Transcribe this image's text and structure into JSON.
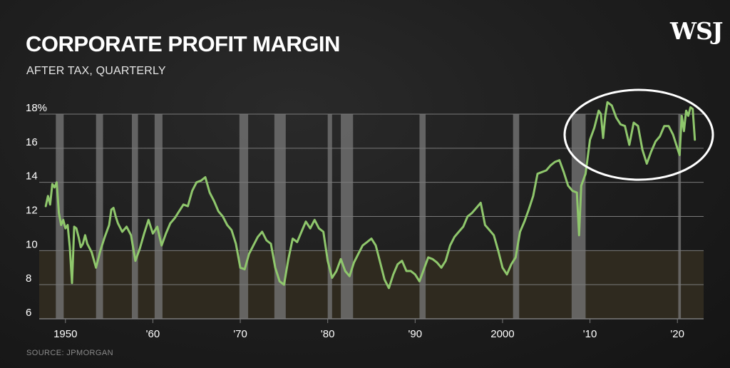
{
  "logo": "WSJ",
  "source": "SOURCE: JPMORGAN",
  "colors": {
    "line": "#8fc76c",
    "recession": "#6e6e6e",
    "below10": "#2f2a1f",
    "grid": "#7a7a7a",
    "circle": "#ffffff"
  },
  "chart_data": {
    "type": "line",
    "title": "CORPORATE PROFIT MARGIN",
    "subtitle": "AFTER TAX, QUARTERLY",
    "ylim": [
      6,
      18
    ],
    "yticks": [
      {
        "value": 18,
        "label": "18%"
      },
      {
        "value": 16,
        "label": "16"
      },
      {
        "value": 14,
        "label": "14"
      },
      {
        "value": 12,
        "label": "12"
      },
      {
        "value": 10,
        "label": "10"
      },
      {
        "value": 8,
        "label": "8"
      },
      {
        "value": 6,
        "label": "6"
      }
    ],
    "xlim": [
      1947,
      2023
    ],
    "xticks": [
      {
        "value": 1950,
        "label": "1950"
      },
      {
        "value": 1960,
        "label": "'60"
      },
      {
        "value": 1970,
        "label": "'70"
      },
      {
        "value": 1980,
        "label": "'80"
      },
      {
        "value": 1990,
        "label": "'90"
      },
      {
        "value": 2000,
        "label": "2000"
      },
      {
        "value": 2010,
        "label": "'10"
      },
      {
        "value": 2020,
        "label": "'20"
      }
    ],
    "recessions": [
      [
        1948.9,
        1949.8
      ],
      [
        1953.5,
        1954.3
      ],
      [
        1957.6,
        1958.3
      ],
      [
        1960.2,
        1961.1
      ],
      [
        1969.9,
        1970.9
      ],
      [
        1973.9,
        1975.2
      ],
      [
        1980.0,
        1980.5
      ],
      [
        1981.5,
        1982.9
      ],
      [
        1990.5,
        1991.2
      ],
      [
        2001.2,
        2001.9
      ],
      [
        2007.9,
        2009.5
      ],
      [
        2020.1,
        2020.4
      ]
    ],
    "series": [
      {
        "values": [
          [
            1947.75,
            12.6
          ],
          [
            1948.0,
            13.2
          ],
          [
            1948.25,
            12.7
          ],
          [
            1948.5,
            13.9
          ],
          [
            1948.75,
            13.7
          ],
          [
            1949.0,
            14.0
          ],
          [
            1949.25,
            12.2
          ],
          [
            1949.5,
            11.5
          ],
          [
            1949.75,
            11.8
          ],
          [
            1950.0,
            11.3
          ],
          [
            1950.25,
            11.5
          ],
          [
            1950.5,
            10.2
          ],
          [
            1950.75,
            8.1
          ],
          [
            1951.0,
            11.4
          ],
          [
            1951.25,
            11.3
          ],
          [
            1951.5,
            10.8
          ],
          [
            1951.75,
            10.2
          ],
          [
            1952.0,
            10.4
          ],
          [
            1952.25,
            10.9
          ],
          [
            1952.5,
            10.4
          ],
          [
            1953.0,
            9.9
          ],
          [
            1953.5,
            9.0
          ],
          [
            1954.0,
            10.0
          ],
          [
            1954.5,
            10.8
          ],
          [
            1955.0,
            11.5
          ],
          [
            1955.25,
            12.4
          ],
          [
            1955.5,
            12.5
          ],
          [
            1955.75,
            12.0
          ],
          [
            1956.0,
            11.6
          ],
          [
            1956.5,
            11.1
          ],
          [
            1957.0,
            11.4
          ],
          [
            1957.5,
            10.9
          ],
          [
            1958.0,
            9.4
          ],
          [
            1958.5,
            10.1
          ],
          [
            1959.0,
            11.0
          ],
          [
            1959.5,
            11.8
          ],
          [
            1960.0,
            11.0
          ],
          [
            1960.5,
            11.4
          ],
          [
            1961.0,
            10.3
          ],
          [
            1961.5,
            11.0
          ],
          [
            1962.0,
            11.6
          ],
          [
            1962.5,
            11.9
          ],
          [
            1963.0,
            12.3
          ],
          [
            1963.5,
            12.7
          ],
          [
            1964.0,
            12.6
          ],
          [
            1964.5,
            13.5
          ],
          [
            1965.0,
            14.0
          ],
          [
            1965.5,
            14.1
          ],
          [
            1966.0,
            14.3
          ],
          [
            1966.5,
            13.4
          ],
          [
            1967.0,
            12.9
          ],
          [
            1967.5,
            12.3
          ],
          [
            1968.0,
            12.0
          ],
          [
            1968.5,
            11.5
          ],
          [
            1969.0,
            11.2
          ],
          [
            1969.5,
            10.4
          ],
          [
            1970.0,
            9.0
          ],
          [
            1970.5,
            8.9
          ],
          [
            1971.0,
            9.8
          ],
          [
            1971.5,
            10.3
          ],
          [
            1972.0,
            10.8
          ],
          [
            1972.5,
            11.1
          ],
          [
            1973.0,
            10.6
          ],
          [
            1973.5,
            10.4
          ],
          [
            1974.0,
            9.0
          ],
          [
            1974.5,
            8.2
          ],
          [
            1975.0,
            8.0
          ],
          [
            1975.5,
            9.5
          ],
          [
            1976.0,
            10.7
          ],
          [
            1976.5,
            10.5
          ],
          [
            1977.0,
            11.1
          ],
          [
            1977.5,
            11.7
          ],
          [
            1978.0,
            11.3
          ],
          [
            1978.5,
            11.8
          ],
          [
            1979.0,
            11.3
          ],
          [
            1979.5,
            11.1
          ],
          [
            1980.0,
            9.4
          ],
          [
            1980.5,
            8.4
          ],
          [
            1981.0,
            8.8
          ],
          [
            1981.5,
            9.5
          ],
          [
            1982.0,
            8.8
          ],
          [
            1982.5,
            8.5
          ],
          [
            1983.0,
            9.3
          ],
          [
            1983.5,
            9.8
          ],
          [
            1984.0,
            10.3
          ],
          [
            1984.5,
            10.5
          ],
          [
            1985.0,
            10.7
          ],
          [
            1985.5,
            10.3
          ],
          [
            1986.0,
            9.3
          ],
          [
            1986.5,
            8.3
          ],
          [
            1987.0,
            7.8
          ],
          [
            1987.5,
            8.6
          ],
          [
            1988.0,
            9.2
          ],
          [
            1988.5,
            9.4
          ],
          [
            1989.0,
            8.8
          ],
          [
            1989.5,
            8.8
          ],
          [
            1990.0,
            8.6
          ],
          [
            1990.5,
            8.2
          ],
          [
            1991.0,
            8.9
          ],
          [
            1991.5,
            9.6
          ],
          [
            1992.0,
            9.5
          ],
          [
            1992.5,
            9.3
          ],
          [
            1993.0,
            9.0
          ],
          [
            1993.5,
            9.4
          ],
          [
            1994.0,
            10.3
          ],
          [
            1994.5,
            10.8
          ],
          [
            1995.0,
            11.1
          ],
          [
            1995.5,
            11.4
          ],
          [
            1996.0,
            12.0
          ],
          [
            1996.5,
            12.2
          ],
          [
            1997.0,
            12.5
          ],
          [
            1997.5,
            12.8
          ],
          [
            1998.0,
            11.5
          ],
          [
            1998.5,
            11.2
          ],
          [
            1999.0,
            10.9
          ],
          [
            1999.5,
            10.0
          ],
          [
            2000.0,
            9.0
          ],
          [
            2000.5,
            8.6
          ],
          [
            2001.0,
            9.2
          ],
          [
            2001.5,
            9.6
          ],
          [
            2002.0,
            11.1
          ],
          [
            2002.5,
            11.7
          ],
          [
            2003.0,
            12.4
          ],
          [
            2003.5,
            13.2
          ],
          [
            2004.0,
            14.5
          ],
          [
            2004.5,
            14.6
          ],
          [
            2005.0,
            14.7
          ],
          [
            2005.5,
            15.0
          ],
          [
            2006.0,
            15.2
          ],
          [
            2006.5,
            15.3
          ],
          [
            2007.0,
            14.6
          ],
          [
            2007.5,
            13.8
          ],
          [
            2008.0,
            13.5
          ],
          [
            2008.5,
            13.4
          ],
          [
            2008.75,
            10.9
          ],
          [
            2009.0,
            13.8
          ],
          [
            2009.5,
            14.5
          ],
          [
            2010.0,
            16.5
          ],
          [
            2010.5,
            17.2
          ],
          [
            2011.0,
            18.2
          ],
          [
            2011.25,
            18.0
          ],
          [
            2011.5,
            16.6
          ],
          [
            2011.75,
            17.9
          ],
          [
            2012.0,
            18.7
          ],
          [
            2012.5,
            18.5
          ],
          [
            2013.0,
            17.8
          ],
          [
            2013.5,
            17.4
          ],
          [
            2014.0,
            17.3
          ],
          [
            2014.5,
            16.2
          ],
          [
            2015.0,
            17.5
          ],
          [
            2015.5,
            17.3
          ],
          [
            2016.0,
            15.9
          ],
          [
            2016.5,
            15.1
          ],
          [
            2017.0,
            15.8
          ],
          [
            2017.5,
            16.4
          ],
          [
            2018.0,
            16.7
          ],
          [
            2018.5,
            17.3
          ],
          [
            2019.0,
            17.3
          ],
          [
            2019.5,
            16.8
          ],
          [
            2020.0,
            16.0
          ],
          [
            2020.25,
            15.6
          ],
          [
            2020.5,
            17.9
          ],
          [
            2020.75,
            17.0
          ],
          [
            2021.0,
            18.2
          ],
          [
            2021.25,
            17.9
          ],
          [
            2021.5,
            18.4
          ],
          [
            2021.75,
            18.3
          ],
          [
            2022.0,
            16.5
          ]
        ]
      }
    ]
  }
}
